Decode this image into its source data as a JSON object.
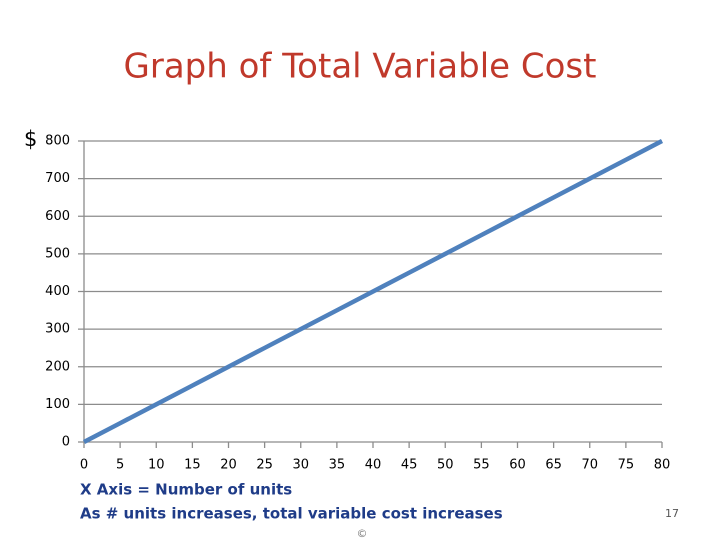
{
  "chart_data": {
    "type": "line",
    "title": "Graph of Total Variable Cost",
    "y_label": "$",
    "x": [
      0,
      5,
      10,
      15,
      20,
      25,
      30,
      35,
      40,
      45,
      50,
      55,
      60,
      65,
      70,
      75,
      80
    ],
    "series": [
      {
        "color": "#4f81bd",
        "values": [
          0,
          50,
          100,
          150,
          200,
          250,
          300,
          350,
          400,
          450,
          500,
          550,
          600,
          650,
          700,
          750,
          800
        ]
      }
    ],
    "xlim": [
      0,
      80
    ],
    "xticks": [
      0,
      5,
      10,
      15,
      20,
      25,
      30,
      35,
      40,
      45,
      50,
      55,
      60,
      65,
      70,
      75,
      80
    ],
    "ylim": [
      0,
      800
    ],
    "yticks": [
      0,
      100,
      200,
      300,
      400,
      500,
      600,
      700,
      800
    ],
    "grid": true,
    "annotations": [
      "X Axis = Number of units",
      "As # units increases, total variable cost increases"
    ]
  },
  "slide_number": "17",
  "footer": "©"
}
